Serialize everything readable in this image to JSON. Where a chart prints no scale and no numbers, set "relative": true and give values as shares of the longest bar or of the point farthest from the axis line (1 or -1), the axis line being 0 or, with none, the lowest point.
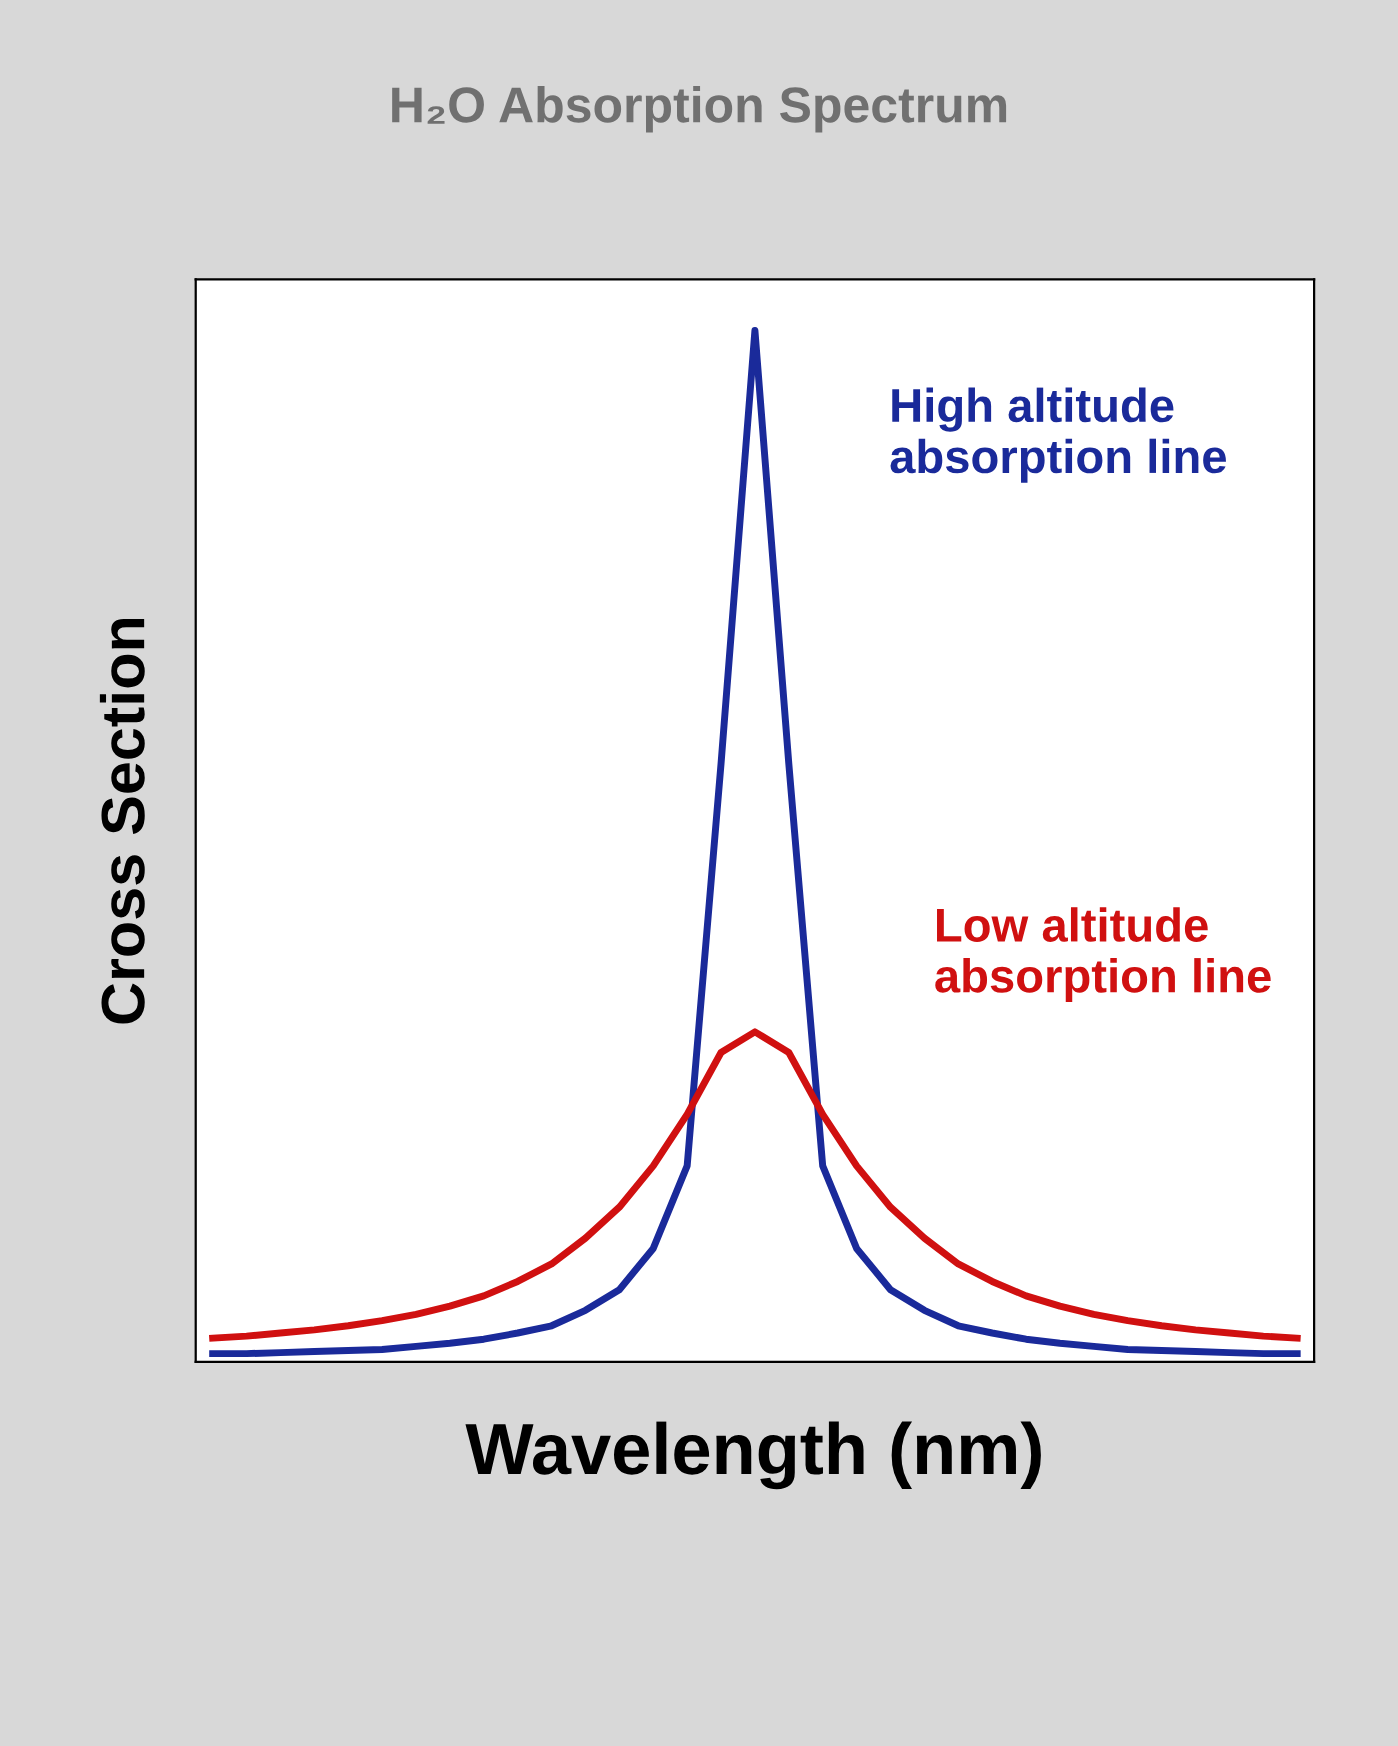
{
  "chart_data": {
    "type": "line",
    "title": "H₂O Absorption Spectrum",
    "xlabel": "Wavelength (nm)",
    "ylabel": "Cross Section",
    "relative": true,
    "categories": [
      null,
      null,
      null,
      null,
      null,
      null,
      null,
      null,
      null,
      null,
      null,
      null,
      null,
      null,
      null,
      null,
      null,
      null,
      null,
      null,
      null,
      null,
      null,
      null,
      null,
      null,
      null,
      null,
      null,
      null,
      null,
      null,
      null
    ],
    "series": [
      {
        "color": "#1a2a9a",
        "values": [
          0.008,
          0.008,
          0.009,
          0.01,
          0.011,
          0.012,
          0.015,
          0.018,
          0.022,
          0.028,
          0.035,
          0.05,
          0.07,
          0.11,
          0.19,
          0.58,
          1.0,
          0.58,
          0.19,
          0.11,
          0.07,
          0.05,
          0.035,
          0.028,
          0.022,
          0.018,
          0.015,
          0.012,
          0.011,
          0.01,
          0.009,
          0.008,
          0.008
        ]
      },
      {
        "color": "#d01010",
        "values": [
          0.023,
          0.025,
          0.028,
          0.031,
          0.035,
          0.04,
          0.046,
          0.054,
          0.064,
          0.078,
          0.095,
          0.12,
          0.15,
          0.19,
          0.24,
          0.3,
          0.32,
          0.3,
          0.24,
          0.19,
          0.15,
          0.12,
          0.095,
          0.078,
          0.064,
          0.054,
          0.046,
          0.04,
          0.035,
          0.031,
          0.028,
          0.025,
          0.023
        ]
      }
    ],
    "annotations": [
      "High altitude absorption line",
      "Low altitude absorption line"
    ],
    "legend": false,
    "grid": false
  }
}
